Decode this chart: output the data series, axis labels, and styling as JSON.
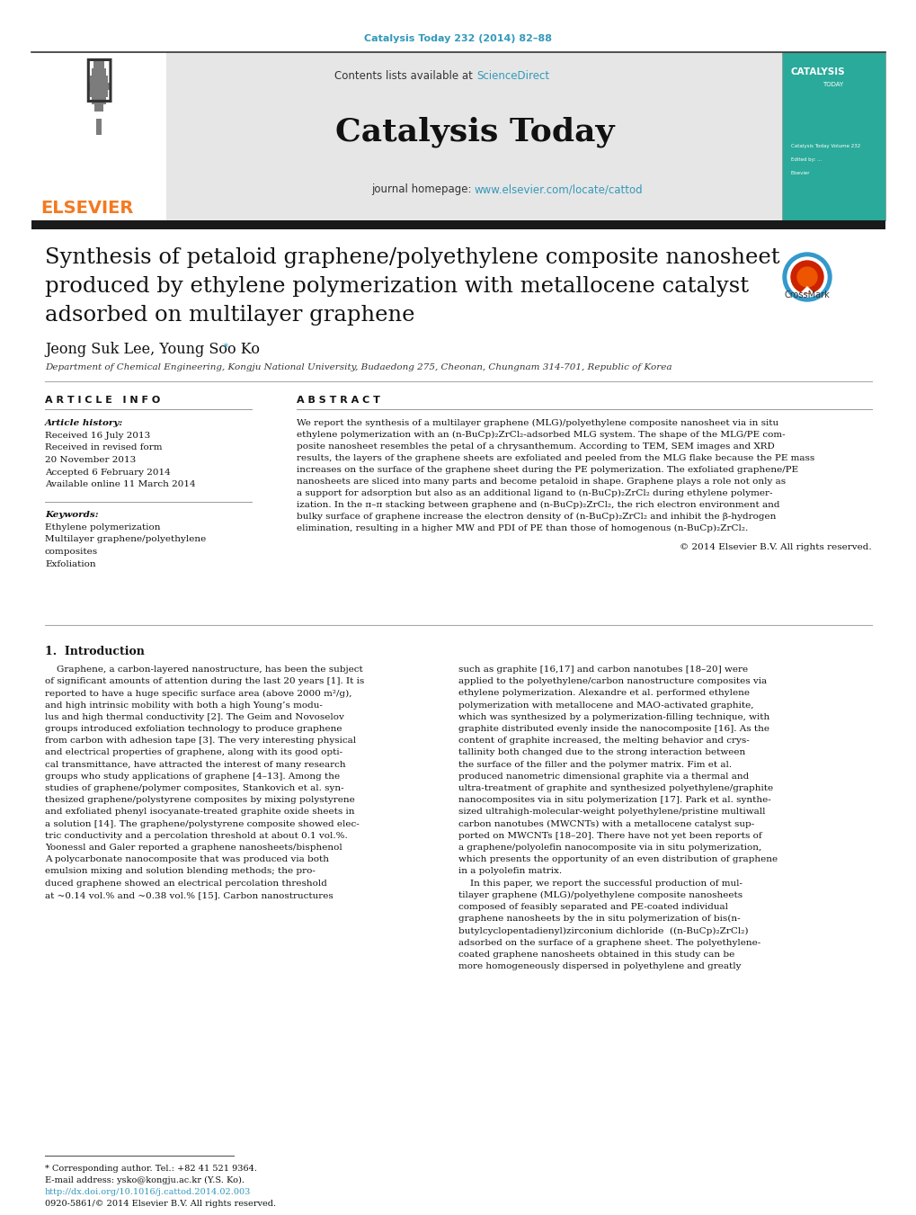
{
  "journal_ref": "Catalysis Today 232 (2014) 82–88",
  "journal_ref_color": "#3399bb",
  "contents_text": "Contents lists available at ",
  "sciencedirect_color": "#3399bb",
  "journal_name": "Catalysis Today",
  "journal_homepage_url": "www.elsevier.com/locate/cattod",
  "journal_homepage_color": "#3399bb",
  "header_bg": "#e0e0e0",
  "paper_title_line1": "Synthesis of petaloid graphene/polyethylene composite nanosheet",
  "paper_title_line2": "produced by ethylene polymerization with metallocene catalyst",
  "paper_title_line3": "adsorbed on multilayer graphene",
  "authors_main": "Jeong Suk Lee, Young Soo Ko",
  "affiliation": "Department of Chemical Engineering, Kongju National University, Budaedong 275, Cheonan, Chungnam 314-701, Republic of Korea",
  "dark_bar_color": "#1a1a1a",
  "article_info_title": "A R T I C L E   I N F O",
  "abstract_title": "A B S T R A C T",
  "article_history_label": "Article history:",
  "received_1": "Received 16 July 2013",
  "received_2": "Received in revised form",
  "received_2b": "20 November 2013",
  "accepted": "Accepted 6 February 2014",
  "available": "Available online 11 March 2014",
  "keywords_label": "Keywords:",
  "keyword1": "Ethylene polymerization",
  "keyword2": "Multilayer graphene/polyethylene",
  "keyword3": "composites",
  "keyword4": "Exfoliation",
  "abstract_lines": [
    "We report the synthesis of a multilayer graphene (MLG)/polyethylene composite nanosheet via in situ",
    "ethylene polymerization with an (n-BuCp)₂ZrCl₂-adsorbed MLG system. The shape of the MLG/PE com-",
    "posite nanosheet resembles the petal of a chrysanthemum. According to TEM, SEM images and XRD",
    "results, the layers of the graphene sheets are exfoliated and peeled from the MLG flake because the PE mass",
    "increases on the surface of the graphene sheet during the PE polymerization. The exfoliated graphene/PE",
    "nanosheets are sliced into many parts and become petaloid in shape. Graphene plays a role not only as",
    "a support for adsorption but also as an additional ligand to (n-BuCp)₂ZrCl₂ during ethylene polymer-",
    "ization. In the π–π stacking between graphene and (n-BuCp)₂ZrCl₂, the rich electron environment and",
    "bulky surface of graphene increase the electron density of (n-BuCp)₂ZrCl₂ and inhibit the β-hydrogen",
    "elimination, resulting in a higher MW and PDI of PE than those of homogenous (n-BuCp)₂ZrCl₂."
  ],
  "copyright": "© 2014 Elsevier B.V. All rights reserved.",
  "section1_title": "1.  Introduction",
  "intro_col1_lines": [
    "    Graphene, a carbon-layered nanostructure, has been the subject",
    "of significant amounts of attention during the last 20 years [1]. It is",
    "reported to have a huge specific surface area (above 2000 m²/g),",
    "and high intrinsic mobility with both a high Young’s modu-",
    "lus and high thermal conductivity [2]. The Geim and Novoselov",
    "groups introduced exfoliation technology to produce graphene",
    "from carbon with adhesion tape [3]. The very interesting physical",
    "and electrical properties of graphene, along with its good opti-",
    "cal transmittance, have attracted the interest of many research",
    "groups who study applications of graphene [4–13]. Among the",
    "studies of graphene/polymer composites, Stankovich et al. syn-",
    "thesized graphene/polystyrene composites by mixing polystyrene",
    "and exfoliated phenyl isocyanate-treated graphite oxide sheets in",
    "a solution [14]. The graphene/polystyrene composite showed elec-",
    "tric conductivity and a percolation threshold at about 0.1 vol.%.",
    "Yoonessl and Galer reported a graphene nanosheets/bisphenol",
    "A polycarbonate nanocomposite that was produced via both",
    "emulsion mixing and solution blending methods; the pro-",
    "duced graphene showed an electrical percolation threshold",
    "at ~0.14 vol.% and ~0.38 vol.% [15]. Carbon nanostructures"
  ],
  "intro_col2_lines": [
    "such as graphite [16,17] and carbon nanotubes [18–20] were",
    "applied to the polyethylene/carbon nanostructure composites via",
    "ethylene polymerization. Alexandre et al. performed ethylene",
    "polymerization with metallocene and MAO-activated graphite,",
    "which was synthesized by a polymerization-filling technique, with",
    "graphite distributed evenly inside the nanocomposite [16]. As the",
    "content of graphite increased, the melting behavior and crys-",
    "tallinity both changed due to the strong interaction between",
    "the surface of the filler and the polymer matrix. Fim et al.",
    "produced nanometric dimensional graphite via a thermal and",
    "ultra-treatment of graphite and synthesized polyethylene/graphite",
    "nanocomposites via in situ polymerization [17]. Park et al. synthe-",
    "sized ultrahigh-molecular-weight polyethylene/pristine multiwall",
    "carbon nanotubes (MWCNTs) with a metallocene catalyst sup-",
    "ported on MWCNTs [18–20]. There have not yet been reports of",
    "a graphene/polyolefin nanocomposite via in situ polymerization,",
    "which presents the opportunity of an even distribution of graphene",
    "in a polyolefin matrix.",
    "    In this paper, we report the successful production of mul-",
    "tilayer graphene (MLG)/polyethylene composite nanosheets",
    "composed of feasibly separated and PE-coated individual",
    "graphene nanosheets by the in situ polymerization of bis(n-",
    "butylcyclopentadienyl)zirconium dichloride  ((n-BuCp)₂ZrCl₂)",
    "adsorbed on the surface of a graphene sheet. The polyethylene-",
    "coated graphene nanosheets obtained in this study can be",
    "more homogeneously dispersed in polyethylene and greatly"
  ],
  "footnote_star": "* Corresponding author. Tel.: +82 41 521 9364.",
  "footnote_email": "E-mail address: ysko@kongju.ac.kr (Y.S. Ko).",
  "footnote_doi": "http://dx.doi.org/10.1016/j.cattod.2014.02.003",
  "footnote_issn": "0920-5861/© 2014 Elsevier B.V. All rights reserved.",
  "link_color": "#3399bb",
  "text_color": "#000000",
  "bg_color": "#ffffff",
  "elsevier_color": "#f47920",
  "teal_cover_color": "#2aaa9a",
  "gray_divider": "#aaaaaa",
  "dark_text": "#111111"
}
